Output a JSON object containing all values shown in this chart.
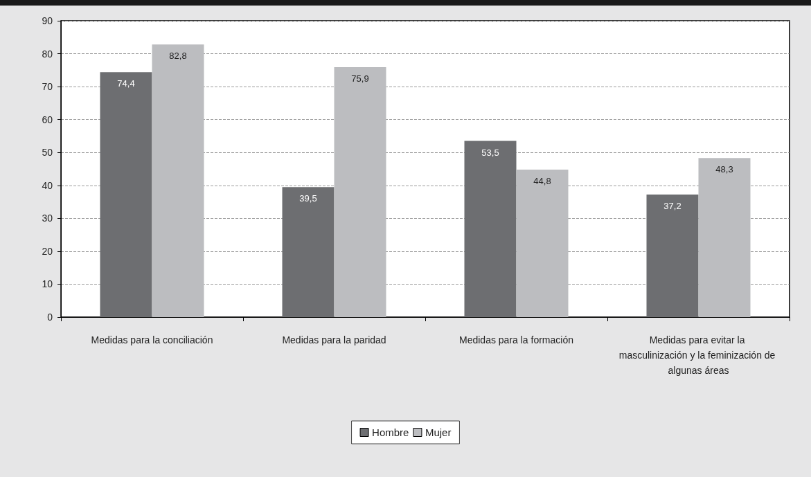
{
  "chart_data": {
    "type": "bar",
    "categories": [
      "Medidas para la conciliación",
      "Medidas para la paridad",
      "Medidas para la formación",
      "Medidas para evitar la masculinización y la feminización de algunas áreas"
    ],
    "series": [
      {
        "name": "Hombre",
        "color": "#6d6e71",
        "values": [
          74.4,
          39.5,
          53.5,
          37.2
        ],
        "value_labels": [
          "74,4",
          "39,5",
          "53,5",
          "37,2"
        ]
      },
      {
        "name": "Mujer",
        "color": "#bcbdc0",
        "values": [
          82.8,
          75.9,
          44.8,
          48.3
        ],
        "value_labels": [
          "82,8",
          "75,9",
          "44,8",
          "48,3"
        ]
      }
    ],
    "ylim": [
      0,
      90
    ],
    "yticks": [
      0,
      10,
      20,
      30,
      40,
      50,
      60,
      70,
      80,
      90
    ],
    "grid": "y",
    "legend": "bottom"
  }
}
